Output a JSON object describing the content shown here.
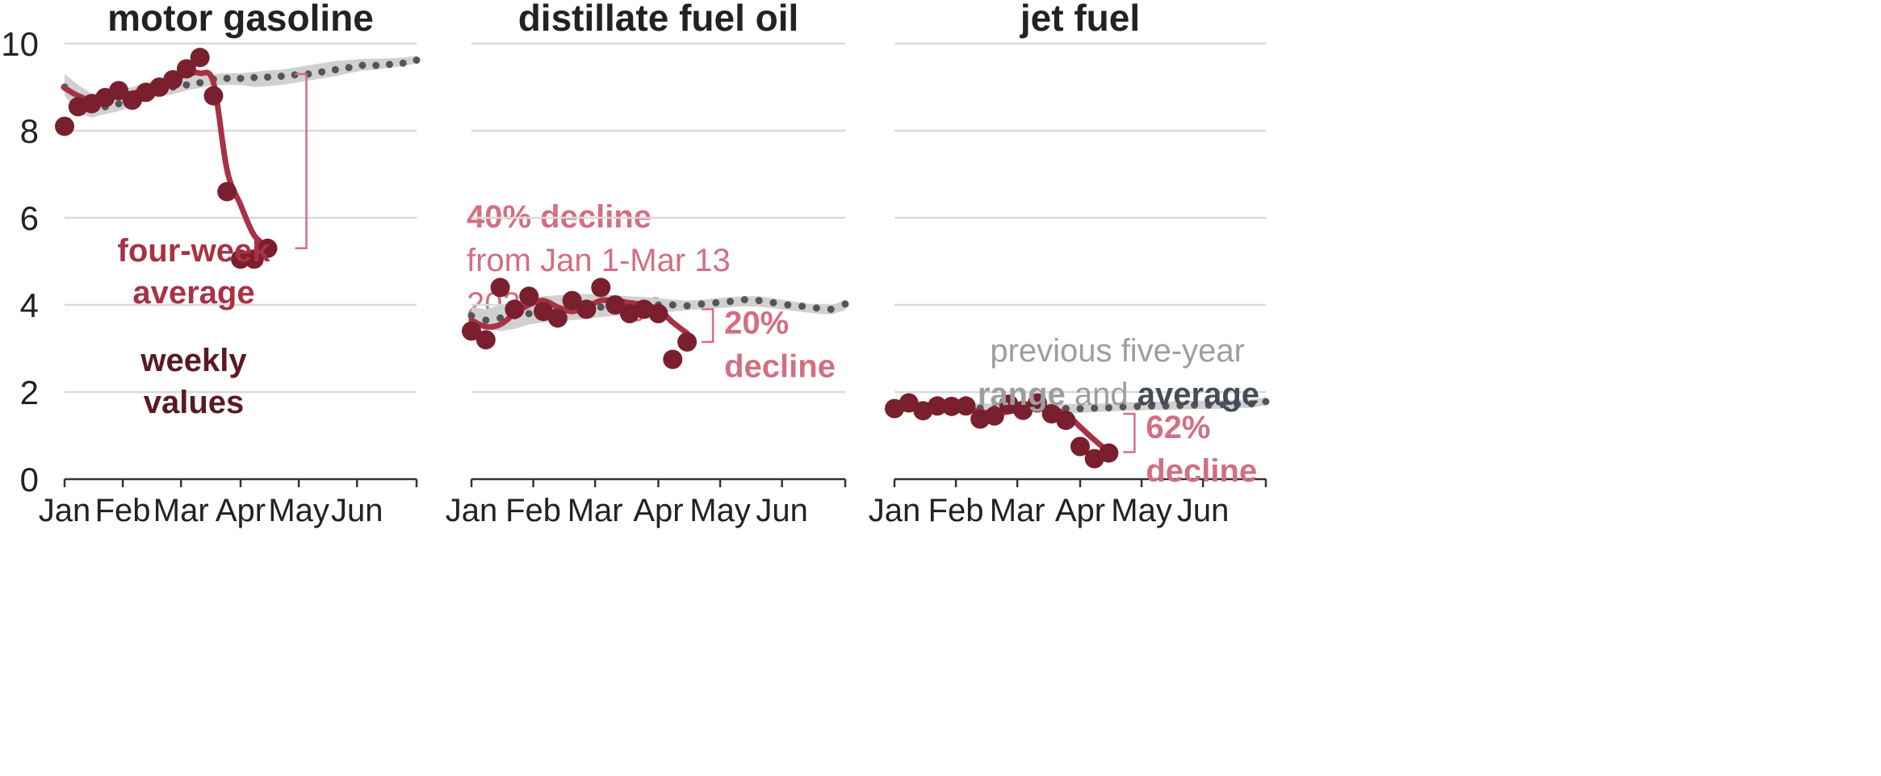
{
  "chart_data": {
    "type": "line",
    "colors": {
      "weekly": "#7a1f2e",
      "four_week_average": "#a83245",
      "five_year_average": "#555555",
      "five_year_range": "#d0d0d0",
      "annotation": "#d26f84",
      "legend_grey": "#9e9e9e",
      "legend_dark": "#444c58",
      "legend_weekly": "#5a1a22",
      "gridline": "#d9d9d9"
    },
    "y_axis": {
      "range": [
        0,
        10
      ],
      "ticks": [
        "0",
        "2",
        "4",
        "6",
        "8",
        "10"
      ]
    },
    "x_axis": {
      "range": [
        0,
        26
      ],
      "ticks": [
        "Jan",
        "Feb",
        "Mar",
        "Apr",
        "May",
        "Jun"
      ]
    },
    "legend": {
      "four_week_average": "four-week\naverage",
      "weekly_values": "weekly\nvalues",
      "range_average_line1": "previous five-year",
      "range_word": "range",
      "and_word": " and ",
      "average_word": "average"
    },
    "panels": [
      {
        "title": "motor gasoline",
        "weekly": [
          8.1,
          8.55,
          8.62,
          8.76,
          8.92,
          8.7,
          8.88,
          9.0,
          9.17,
          9.42,
          9.68,
          8.8,
          6.6,
          5.05,
          5.05,
          5.3
        ],
        "four_week_average": [
          8.98,
          8.8,
          8.7,
          8.75,
          8.8,
          8.85,
          8.95,
          9.05,
          9.15,
          9.3,
          9.32,
          9.1,
          7.1,
          6.3,
          5.6,
          5.35
        ],
        "five_year_average": [
          9.0,
          8.7,
          8.5,
          8.55,
          8.62,
          8.72,
          8.85,
          8.95,
          9.0,
          9.05,
          9.1,
          9.18,
          9.2,
          9.2,
          9.22,
          9.23,
          9.25,
          9.28,
          9.3,
          9.35,
          9.4,
          9.45,
          9.5,
          9.5,
          9.52,
          9.55,
          9.62
        ],
        "five_year_range_low": [
          8.8,
          8.4,
          8.3,
          8.38,
          8.45,
          8.55,
          8.68,
          8.78,
          8.84,
          8.92,
          8.98,
          9.05,
          9.05,
          9.05,
          9.0,
          9.02,
          9.05,
          9.1,
          9.15,
          9.2,
          9.25,
          9.32,
          9.38,
          9.4,
          9.45,
          9.48,
          9.55
        ],
        "five_year_range_high": [
          9.3,
          9.05,
          8.85,
          8.9,
          8.95,
          9.0,
          9.1,
          9.15,
          9.2,
          9.25,
          9.28,
          9.3,
          9.32,
          9.32,
          9.35,
          9.38,
          9.4,
          9.45,
          9.5,
          9.55,
          9.6,
          9.62,
          9.65,
          9.65,
          9.66,
          9.68,
          9.72
        ],
        "annotation": {
          "line1": "40% decline",
          "line2": "from Jan 1-Mar 13",
          "line3": "2020 average",
          "bracket_from": 9.3,
          "bracket_to": 5.3
        }
      },
      {
        "title": "distillate fuel oil",
        "weekly": [
          3.4,
          3.2,
          4.4,
          3.9,
          4.2,
          3.85,
          3.7,
          4.1,
          3.9,
          4.4,
          4.0,
          3.8,
          3.9,
          3.8,
          2.75,
          3.15
        ],
        "four_week_average": [
          3.65,
          3.5,
          3.55,
          3.8,
          4.0,
          4.1,
          3.95,
          3.85,
          3.95,
          4.1,
          4.1,
          4.05,
          4.0,
          3.9,
          3.6,
          3.35
        ],
        "five_year_average": [
          3.75,
          3.65,
          3.7,
          3.75,
          3.8,
          3.85,
          3.88,
          3.9,
          3.92,
          3.95,
          3.98,
          4.0,
          4.02,
          4.0,
          4.0,
          3.98,
          4.02,
          4.05,
          4.08,
          4.12,
          4.1,
          4.05,
          4.0,
          3.97,
          3.93,
          3.9,
          4.02
        ],
        "five_year_range_low": [
          3.55,
          3.45,
          3.4,
          3.45,
          3.55,
          3.6,
          3.62,
          3.65,
          3.68,
          3.72,
          3.75,
          3.78,
          3.8,
          3.82,
          3.85,
          3.88,
          3.9,
          3.92,
          3.95,
          3.97,
          3.96,
          3.92,
          3.88,
          3.84,
          3.8,
          3.78,
          3.88
        ],
        "five_year_range_high": [
          3.95,
          3.9,
          4.0,
          4.05,
          4.15,
          4.2,
          4.22,
          4.25,
          4.25,
          4.25,
          4.22,
          4.2,
          4.18,
          4.15,
          4.12,
          4.1,
          4.12,
          4.15,
          4.18,
          4.2,
          4.2,
          4.15,
          4.1,
          4.05,
          4.0,
          3.98,
          4.12
        ],
        "annotation": {
          "line1": "20%",
          "line2": "decline",
          "bracket_from": 3.9,
          "bracket_to": 3.15
        }
      },
      {
        "title": "jet fuel",
        "weekly": [
          1.62,
          1.75,
          1.57,
          1.68,
          1.67,
          1.68,
          1.38,
          1.45,
          1.72,
          1.58,
          1.75,
          1.5,
          1.35,
          0.75,
          0.47,
          0.6
        ],
        "four_week_average": [
          1.65,
          1.66,
          1.65,
          1.64,
          1.63,
          1.62,
          1.55,
          1.5,
          1.55,
          1.6,
          1.65,
          1.6,
          1.5,
          1.2,
          0.9,
          0.62
        ],
        "five_year_average": [
          1.62,
          1.65,
          1.63,
          1.64,
          1.65,
          1.64,
          1.63,
          1.62,
          1.63,
          1.64,
          1.65,
          1.64,
          1.62,
          1.62,
          1.63,
          1.64,
          1.66,
          1.67,
          1.68,
          1.68,
          1.69,
          1.7,
          1.7,
          1.71,
          1.72,
          1.73,
          1.78
        ],
        "five_year_range_low": [
          1.52,
          1.55,
          1.52,
          1.54,
          1.55,
          1.54,
          1.53,
          1.52,
          1.53,
          1.54,
          1.55,
          1.53,
          1.52,
          1.52,
          1.54,
          1.55,
          1.57,
          1.58,
          1.59,
          1.59,
          1.6,
          1.61,
          1.61,
          1.62,
          1.63,
          1.64,
          1.7
        ],
        "five_year_range_high": [
          1.74,
          1.77,
          1.75,
          1.75,
          1.76,
          1.75,
          1.74,
          1.73,
          1.74,
          1.75,
          1.76,
          1.75,
          1.73,
          1.72,
          1.73,
          1.74,
          1.76,
          1.77,
          1.78,
          1.78,
          1.79,
          1.8,
          1.8,
          1.81,
          1.82,
          1.83,
          1.88
        ],
        "annotation": {
          "line1": "62%",
          "line2": "decline",
          "bracket_from": 1.5,
          "bracket_to": 0.62
        }
      }
    ]
  }
}
